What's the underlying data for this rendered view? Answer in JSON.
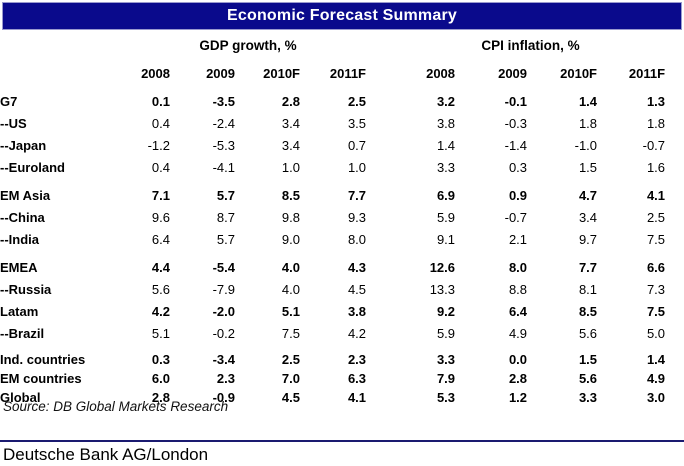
{
  "title": "Economic Forecast Summary",
  "colors": {
    "title_bg": "#0a0a8c",
    "title_border": "#9a9ace",
    "title_text": "#ffffff",
    "footer_rule": "#1a1a70"
  },
  "table": {
    "group_headers": {
      "gdp": "GDP growth, %",
      "cpi": "CPI inflation, %"
    },
    "years": [
      "2008",
      "2009",
      "2010F",
      "2011F"
    ],
    "rows": [
      {
        "label": "G7",
        "emphasis": true,
        "gap_before": false,
        "compact": false,
        "gdp": [
          "0.1",
          "-3.5",
          "2.8",
          "2.5"
        ],
        "cpi": [
          "3.2",
          "-0.1",
          "1.4",
          "1.3"
        ]
      },
      {
        "label": "--US",
        "emphasis": false,
        "gap_before": false,
        "compact": false,
        "gdp": [
          "0.4",
          "-2.4",
          "3.4",
          "3.5"
        ],
        "cpi": [
          "3.8",
          "-0.3",
          "1.8",
          "1.8"
        ]
      },
      {
        "label": "--Japan",
        "emphasis": false,
        "gap_before": false,
        "compact": false,
        "gdp": [
          "-1.2",
          "-5.3",
          "3.4",
          "0.7"
        ],
        "cpi": [
          "1.4",
          "-1.4",
          "-1.0",
          "-0.7"
        ]
      },
      {
        "label": "--Euroland",
        "emphasis": false,
        "gap_before": false,
        "compact": false,
        "gdp": [
          "0.4",
          "-4.1",
          "1.0",
          "1.0"
        ],
        "cpi": [
          "3.3",
          "0.3",
          "1.5",
          "1.6"
        ]
      },
      {
        "label": "EM Asia",
        "emphasis": true,
        "gap_before": true,
        "compact": false,
        "gdp": [
          "7.1",
          "5.7",
          "8.5",
          "7.7"
        ],
        "cpi": [
          "6.9",
          "0.9",
          "4.7",
          "4.1"
        ]
      },
      {
        "label": "--China",
        "emphasis": false,
        "gap_before": false,
        "compact": false,
        "gdp": [
          "9.6",
          "8.7",
          "9.8",
          "9.3"
        ],
        "cpi": [
          "5.9",
          "-0.7",
          "3.4",
          "2.5"
        ]
      },
      {
        "label": "--India",
        "emphasis": false,
        "gap_before": false,
        "compact": false,
        "gdp": [
          "6.4",
          "5.7",
          "9.0",
          "8.0"
        ],
        "cpi": [
          "9.1",
          "2.1",
          "9.7",
          "7.5"
        ]
      },
      {
        "label": "EMEA",
        "emphasis": true,
        "gap_before": true,
        "compact": false,
        "gdp": [
          "4.4",
          "-5.4",
          "4.0",
          "4.3"
        ],
        "cpi": [
          "12.6",
          "8.0",
          "7.7",
          "6.6"
        ]
      },
      {
        "label": "--Russia",
        "emphasis": false,
        "gap_before": false,
        "compact": false,
        "gdp": [
          "5.6",
          "-7.9",
          "4.0",
          "4.5"
        ],
        "cpi": [
          "13.3",
          "8.8",
          "8.1",
          "7.3"
        ]
      },
      {
        "label": "Latam",
        "emphasis": true,
        "gap_before": false,
        "compact": false,
        "gdp": [
          "4.2",
          "-2.0",
          "5.1",
          "3.8"
        ],
        "cpi": [
          "9.2",
          "6.4",
          "8.5",
          "7.5"
        ]
      },
      {
        "label": "--Brazil",
        "emphasis": false,
        "gap_before": false,
        "compact": false,
        "gdp": [
          "5.1",
          "-0.2",
          "7.5",
          "4.2"
        ],
        "cpi": [
          "5.9",
          "4.9",
          "5.6",
          "5.0"
        ]
      },
      {
        "label": "Ind. countries",
        "emphasis": true,
        "gap_before": true,
        "compact": true,
        "gdp": [
          "0.3",
          "-3.4",
          "2.5",
          "2.3"
        ],
        "cpi": [
          "3.3",
          "0.0",
          "1.5",
          "1.4"
        ]
      },
      {
        "label": "EM countries",
        "emphasis": true,
        "gap_before": false,
        "compact": true,
        "gdp": [
          "6.0",
          "2.3",
          "7.0",
          "6.3"
        ],
        "cpi": [
          "7.9",
          "2.8",
          "5.6",
          "4.9"
        ]
      },
      {
        "label": "Global",
        "emphasis": true,
        "gap_before": false,
        "compact": true,
        "gdp": [
          "2.8",
          "-0.9",
          "4.5",
          "4.1"
        ],
        "cpi": [
          "5.3",
          "1.2",
          "3.3",
          "3.0"
        ]
      }
    ]
  },
  "source": "Source: DB Global Markets Research",
  "footer": "Deutsche Bank AG/London"
}
